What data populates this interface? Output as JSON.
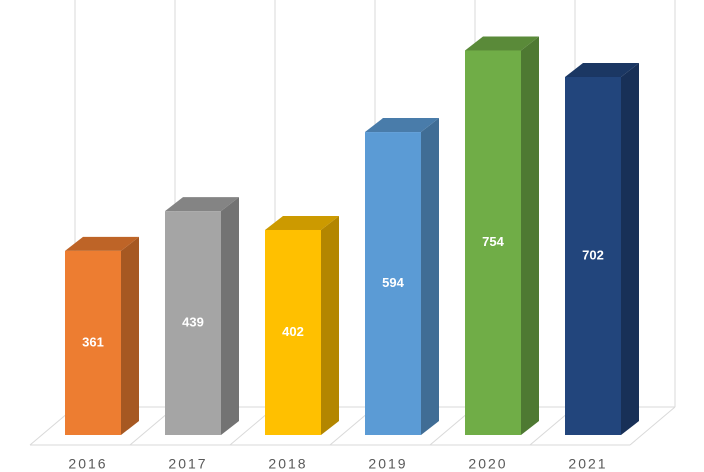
{
  "chart_data": {
    "type": "bar",
    "categories": [
      "2016",
      "2017",
      "2018",
      "2019",
      "2020",
      "2021"
    ],
    "values": [
      361,
      439,
      402,
      594,
      754,
      702
    ],
    "colors": [
      "#ed7d31",
      "#a5a5a5",
      "#ffc000",
      "#5b9bd5",
      "#70ad47",
      "#22457c"
    ],
    "data_labels": true
  }
}
